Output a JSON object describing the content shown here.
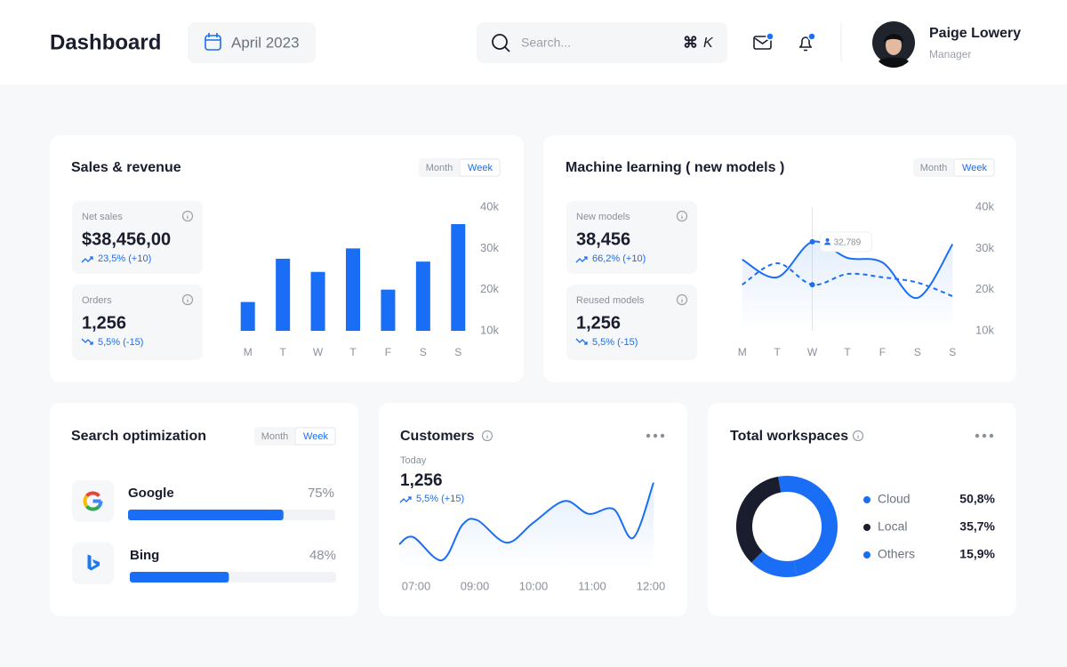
{
  "header": {
    "title": "Dashboard",
    "date": "April 2023",
    "search_placeholder": "Search...",
    "shortcut": [
      "⌘",
      "K"
    ],
    "user": {
      "name": "Paige Lowery",
      "role": "Manager"
    }
  },
  "sales": {
    "title": "Sales & revenue",
    "tabs": [
      "Month",
      "Week"
    ],
    "stats": [
      {
        "label": "Net sales",
        "value": "$38,456,00",
        "change": "23,5% (+10)",
        "trend": "up"
      },
      {
        "label": "Orders",
        "value": "1,256",
        "change": "5,5% (-15)",
        "trend": "down"
      }
    ],
    "chart_data": {
      "type": "bar",
      "categories": [
        "M",
        "T",
        "W",
        "T",
        "F",
        "S",
        "S"
      ],
      "values": [
        17000,
        27500,
        24300,
        30000,
        20000,
        26800,
        35900
      ],
      "color": "#1a6ef5",
      "ylim": [
        10000,
        40000
      ],
      "yticks": [
        {
          "value": 10000,
          "label": "10k"
        },
        {
          "value": 20000,
          "label": "20k"
        },
        {
          "value": 30000,
          "label": "30k"
        },
        {
          "value": 40000,
          "label": "40k"
        }
      ]
    }
  },
  "machine_learning": {
    "title": "Machine learning ( new models )",
    "tabs": [
      "Month",
      "Week"
    ],
    "stats": [
      {
        "label": "New models",
        "value": "38,456",
        "change": "66,2% (+10)",
        "trend": "up"
      },
      {
        "label": "Reused models",
        "value": "1,256",
        "change": "5,5% (-15)",
        "trend": "down"
      }
    ],
    "chart_data": {
      "type": "line",
      "categories": [
        "M",
        "T",
        "W",
        "T",
        "F",
        "S",
        "S"
      ],
      "series": [
        {
          "color": "#1a6ef5",
          "style": "solid",
          "values": [
            27300,
            23000,
            31600,
            27700,
            26600,
            18000,
            31000
          ]
        },
        {
          "color": "#1a6ef5",
          "style": "dashed",
          "values": [
            21200,
            26400,
            21200,
            23800,
            23000,
            21700,
            18400
          ]
        }
      ],
      "annotation": {
        "text": "32,789"
      },
      "ylim": [
        10000,
        40000
      ],
      "yticks": [
        {
          "value": 10000,
          "label": "10k"
        },
        {
          "value": 20000,
          "label": "20k"
        },
        {
          "value": 30000,
          "label": "30k"
        },
        {
          "value": 40000,
          "label": "40k"
        }
      ]
    }
  },
  "search_optimization": {
    "title": "Search optimization",
    "tabs": [
      "Month",
      "Week"
    ],
    "items": [
      {
        "name": "Google",
        "value": 75,
        "label": "75%"
      },
      {
        "name": "Bing",
        "value": 48,
        "label": "48%"
      }
    ]
  },
  "customers": {
    "title": "Customers",
    "period": "Today",
    "value": "1,256",
    "change": "5,5% (+15)",
    "trend": "up",
    "chart_data": {
      "type": "line",
      "categories": [
        "07:00",
        "09:00",
        "10:00",
        "11:00",
        "12:00"
      ],
      "series": [
        {
          "color": "#1a6ef5",
          "x": [
            0,
            0.22,
            0.67,
            0.99,
            1.23,
            1.69,
            2.11,
            2.6,
            2.98,
            3.37,
            3.68,
            4
          ],
          "values": [
            20,
            29,
            0,
            44,
            50,
            22,
            47,
            74,
            58,
            64,
            28,
            97
          ]
        }
      ],
      "xlim": [
        0,
        4
      ],
      "ylim": [
        0,
        100
      ]
    }
  },
  "workspaces": {
    "title": "Total workspaces",
    "chart_data": {
      "type": "donut",
      "categories": [
        "Cloud",
        "Local",
        "Others"
      ],
      "values": [
        50.8,
        35.7,
        15.9
      ],
      "value_labels": [
        "50,8%",
        "35,7%",
        "15,9%"
      ],
      "colors": [
        "#1a6ef5",
        "#1a1d2e",
        "#1a6ef5"
      ]
    }
  }
}
